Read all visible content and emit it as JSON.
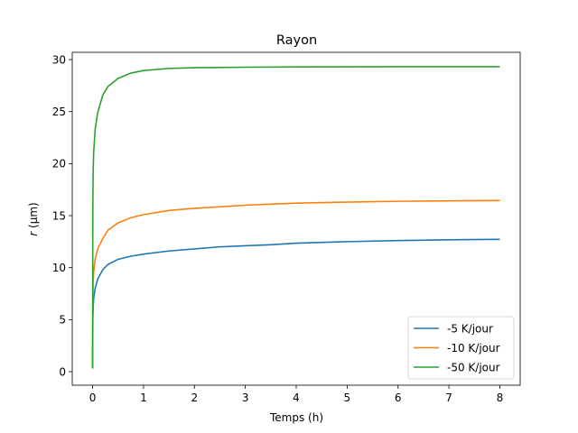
{
  "chart_data": {
    "type": "line",
    "title": "Rayon",
    "xlabel": "Temps (h)",
    "ylabel": "r (μm)",
    "xlim": [
      -0.4,
      8.4
    ],
    "ylim": [
      -1.3,
      30.7
    ],
    "xticks": [
      0,
      1,
      2,
      3,
      4,
      5,
      6,
      7,
      8
    ],
    "yticks": [
      0,
      5,
      10,
      15,
      20,
      25,
      30
    ],
    "grid": false,
    "legend_position": "lower-right",
    "series": [
      {
        "name": "-5 K/jour",
        "color": "#1f77b4",
        "points": [
          [
            0,
            0.3
          ],
          [
            0.005,
            5.0
          ],
          [
            0.01,
            6.0
          ],
          [
            0.02,
            7.0
          ],
          [
            0.05,
            8.0
          ],
          [
            0.1,
            8.9
          ],
          [
            0.2,
            9.8
          ],
          [
            0.3,
            10.3
          ],
          [
            0.5,
            10.8
          ],
          [
            0.75,
            11.1
          ],
          [
            1,
            11.3
          ],
          [
            1.5,
            11.6
          ],
          [
            2,
            11.8
          ],
          [
            2.5,
            12.0
          ],
          [
            3,
            12.1
          ],
          [
            3.5,
            12.2
          ],
          [
            4,
            12.35
          ],
          [
            5,
            12.5
          ],
          [
            6,
            12.6
          ],
          [
            7,
            12.68
          ],
          [
            8,
            12.72
          ]
        ]
      },
      {
        "name": "-10 K/jour",
        "color": "#ff7f0e",
        "points": [
          [
            0,
            0.3
          ],
          [
            0.005,
            7.0
          ],
          [
            0.01,
            8.5
          ],
          [
            0.02,
            9.5
          ],
          [
            0.05,
            10.8
          ],
          [
            0.1,
            11.8
          ],
          [
            0.2,
            12.8
          ],
          [
            0.3,
            13.6
          ],
          [
            0.5,
            14.3
          ],
          [
            0.75,
            14.8
          ],
          [
            1,
            15.1
          ],
          [
            1.5,
            15.5
          ],
          [
            2,
            15.7
          ],
          [
            2.5,
            15.85
          ],
          [
            3,
            16.0
          ],
          [
            3.5,
            16.1
          ],
          [
            4,
            16.2
          ],
          [
            5,
            16.3
          ],
          [
            6,
            16.38
          ],
          [
            7,
            16.42
          ],
          [
            8,
            16.45
          ]
        ]
      },
      {
        "name": "-50 K/jour",
        "color": "#2ca02c",
        "points": [
          [
            0,
            0.3
          ],
          [
            0.003,
            12.0
          ],
          [
            0.005,
            16.0
          ],
          [
            0.01,
            19.0
          ],
          [
            0.02,
            21.0
          ],
          [
            0.05,
            23.3
          ],
          [
            0.1,
            24.9
          ],
          [
            0.2,
            26.6
          ],
          [
            0.3,
            27.4
          ],
          [
            0.5,
            28.2
          ],
          [
            0.75,
            28.7
          ],
          [
            1,
            28.95
          ],
          [
            1.5,
            29.15
          ],
          [
            2,
            29.22
          ],
          [
            3,
            29.27
          ],
          [
            4,
            29.3
          ],
          [
            5,
            29.31
          ],
          [
            6,
            29.32
          ],
          [
            7,
            29.32
          ],
          [
            8,
            29.32
          ]
        ]
      }
    ]
  }
}
